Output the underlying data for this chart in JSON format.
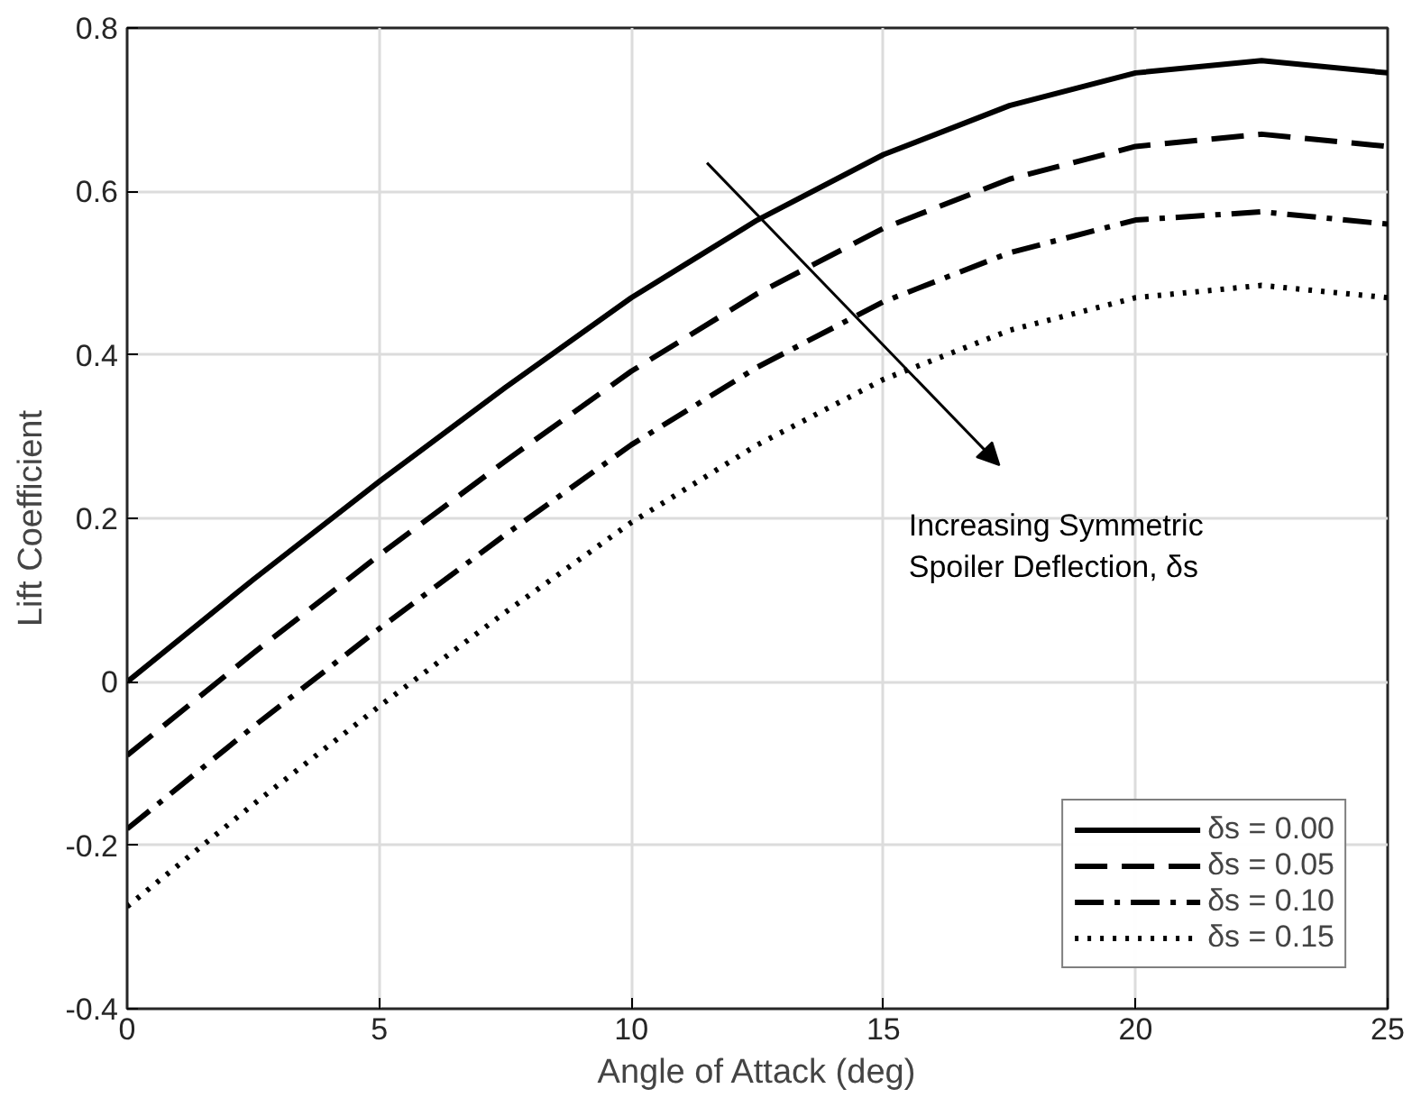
{
  "chart_data": {
    "type": "line",
    "xlabel": "Angle of Attack (deg)",
    "ylabel": "Lift Coefficient",
    "x": [
      0,
      2.5,
      5,
      7.5,
      10,
      12.5,
      15,
      17.5,
      20,
      22.5,
      25
    ],
    "series": [
      {
        "name": "δs = 0.00",
        "color": "#000000",
        "line_style": "solid",
        "values": [
          0,
          0.125,
          0.245,
          0.36,
          0.47,
          0.565,
          0.645,
          0.705,
          0.745,
          0.76,
          0.745
        ]
      },
      {
        "name": "δs = 0.05",
        "color": "#000000",
        "line_style": "dashed",
        "values": [
          -0.09,
          0.035,
          0.155,
          0.27,
          0.38,
          0.475,
          0.555,
          0.615,
          0.655,
          0.67,
          0.655
        ]
      },
      {
        "name": "δs = 0.10",
        "color": "#000000",
        "line_style": "dashdot",
        "values": [
          -0.18,
          -0.055,
          0.065,
          0.18,
          0.29,
          0.385,
          0.465,
          0.525,
          0.565,
          0.575,
          0.56
        ]
      },
      {
        "name": "δs = 0.15",
        "color": "#000000",
        "line_style": "dotted",
        "values": [
          -0.275,
          -0.15,
          -0.03,
          0.085,
          0.195,
          0.29,
          0.37,
          0.43,
          0.47,
          0.485,
          0.47
        ]
      }
    ],
    "xlim": [
      0,
      25
    ],
    "ylim": [
      -0.4,
      0.8
    ],
    "xticks": [
      0,
      5,
      10,
      15,
      20,
      25
    ],
    "yticks": [
      -0.4,
      -0.2,
      0,
      0.2,
      0.4,
      0.6,
      0.8
    ],
    "grid": true,
    "legend": "bottom right",
    "marker": "none",
    "annotations": [
      "Increasing Symmetric\nSpoiler Deflection, δs"
    ]
  }
}
